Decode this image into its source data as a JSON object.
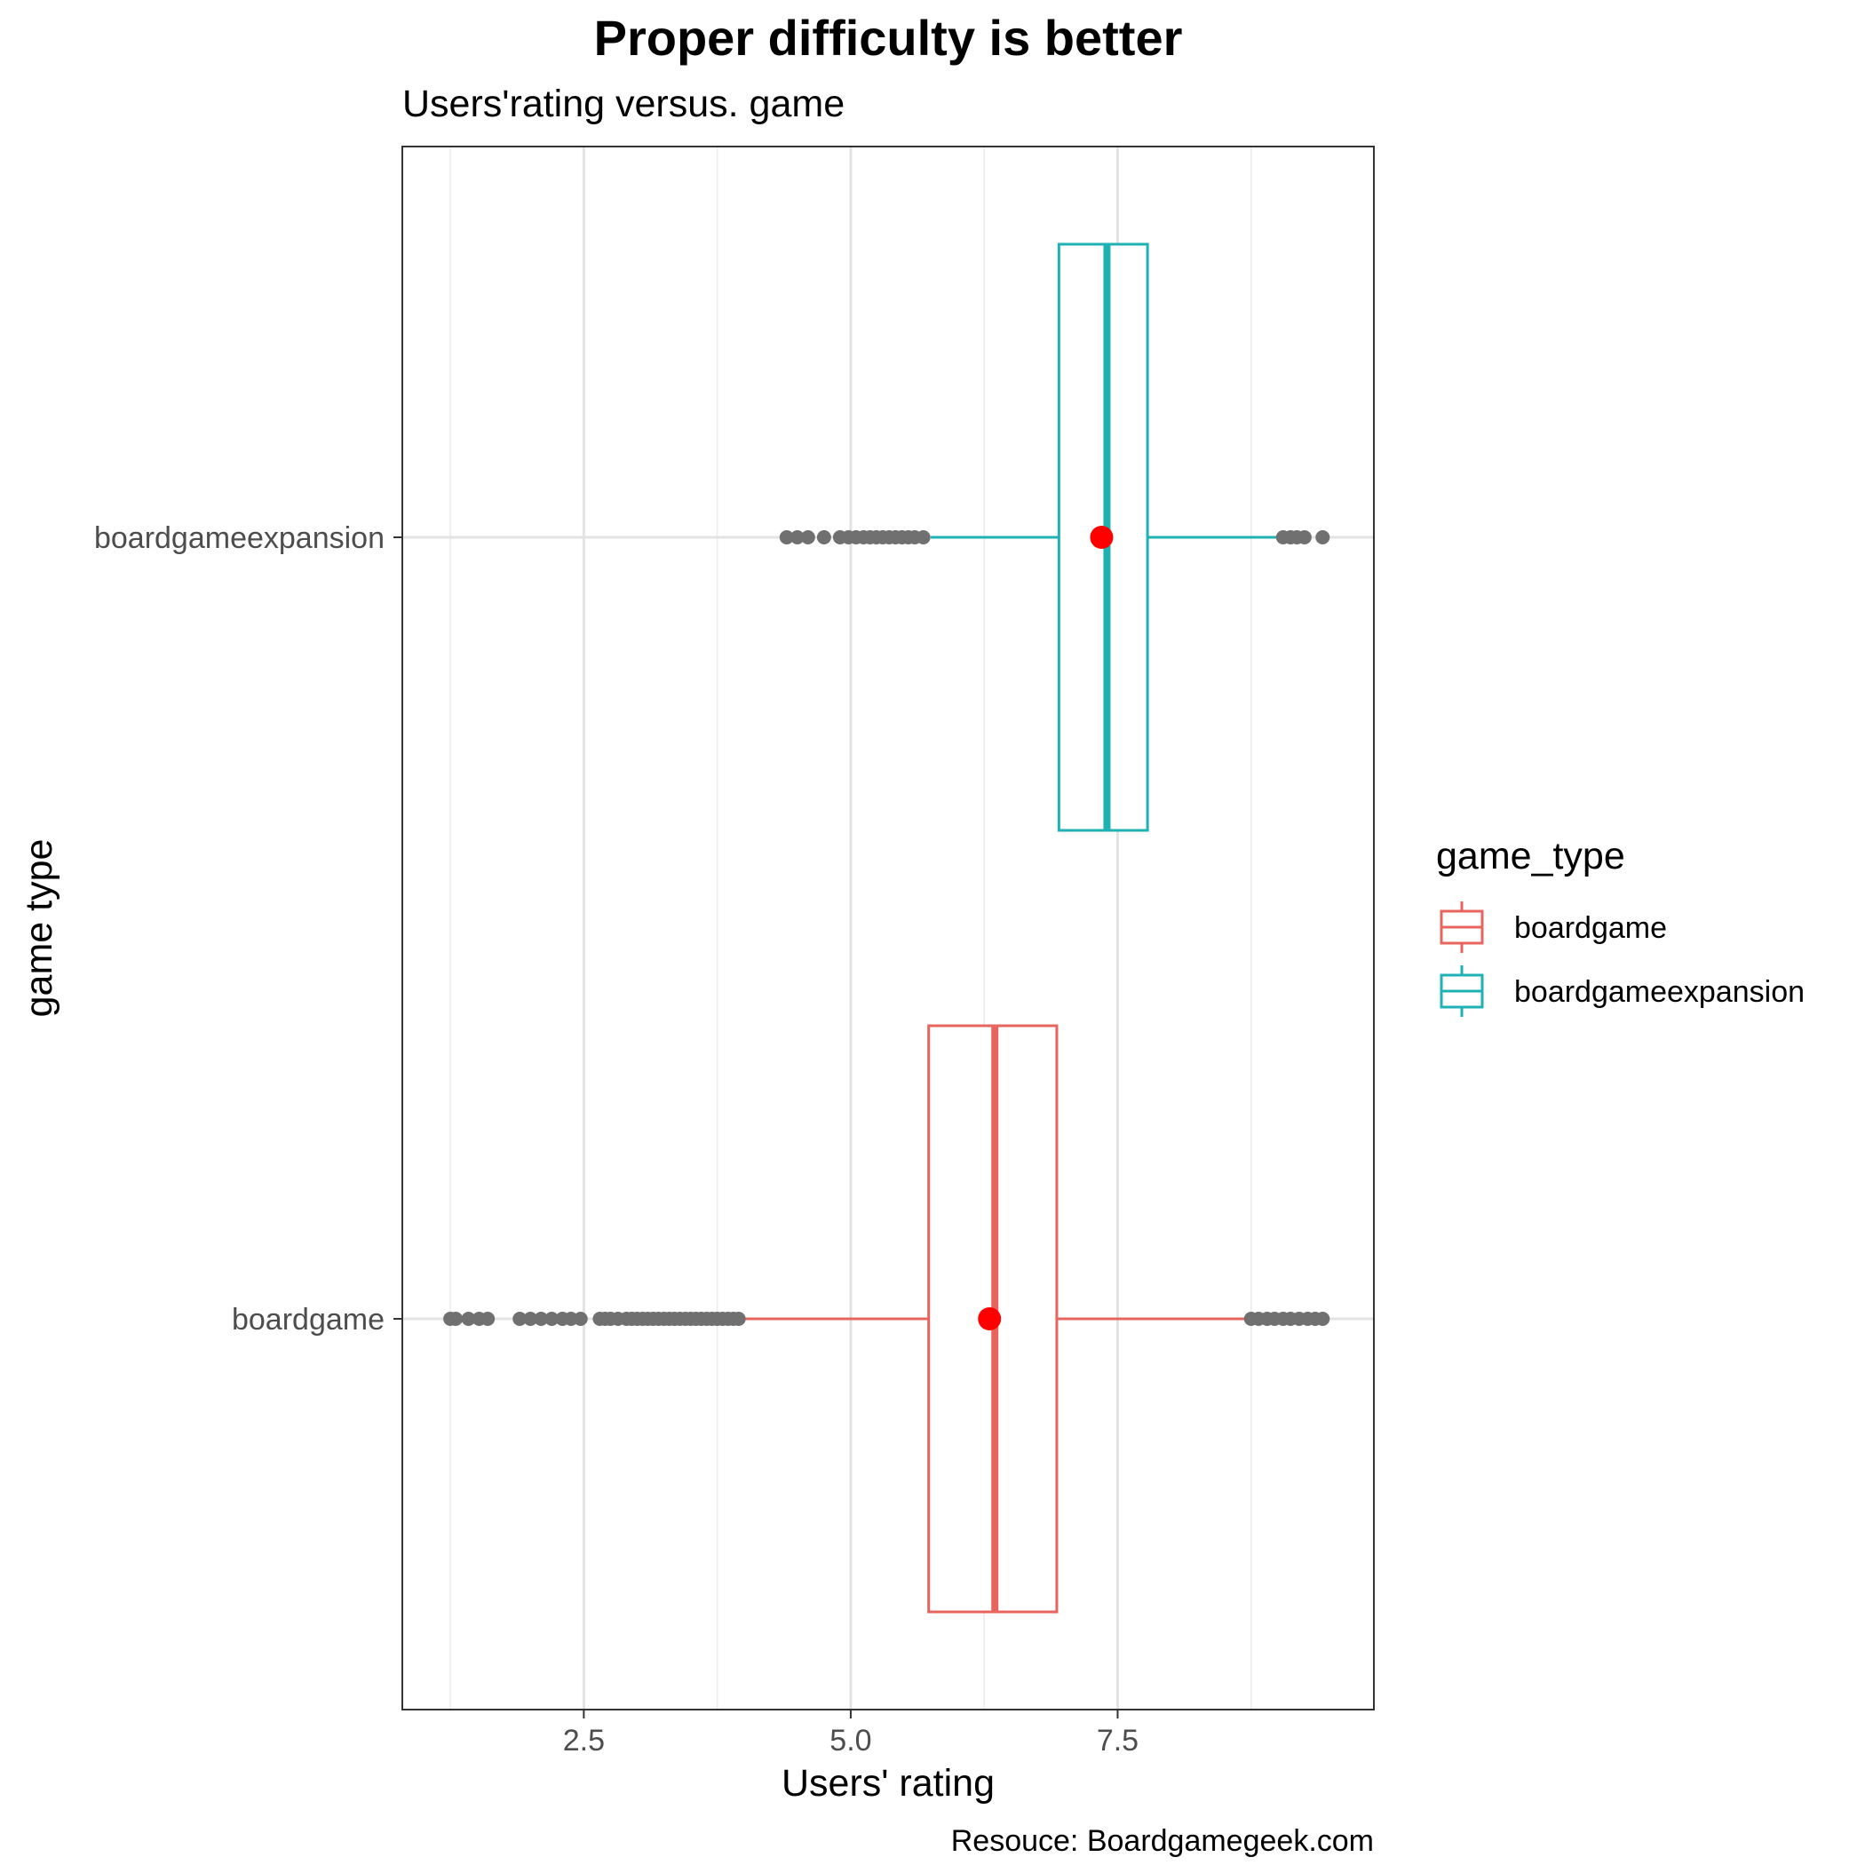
{
  "chart_data": {
    "type": "boxplot",
    "title": "Proper difficulty is better",
    "subtitle": "Users'rating versus. game",
    "xlabel": "Users' rating",
    "ylabel": "game type",
    "caption": "Resouce: Boardgamegeek.com",
    "orientation": "horizontal",
    "xlim": [
      0.8,
      9.9
    ],
    "x_ticks": [
      2.5,
      5.0,
      7.5
    ],
    "x_tick_labels": [
      "2.5",
      "5.0",
      "7.5"
    ],
    "categories": [
      "boardgameexpansion",
      "boardgame"
    ],
    "grid": true,
    "legend": {
      "title": "game_type",
      "position": "right",
      "entries": [
        "boardgame",
        "boardgameexpansion"
      ]
    },
    "mean_point_color": "#FF0000",
    "outlier_color": "#707070",
    "series": [
      {
        "name": "boardgameexpansion",
        "color": "#1FB1B4",
        "whisker_low": 5.75,
        "q1": 6.95,
        "median": 7.4,
        "q3": 7.78,
        "whisker_high": 9.0,
        "mean": 7.35,
        "outliers": [
          4.4,
          4.5,
          4.6,
          4.75,
          4.9,
          4.98,
          5.05,
          5.12,
          5.18,
          5.24,
          5.3,
          5.36,
          5.42,
          5.48,
          5.54,
          5.6,
          5.68,
          9.05,
          9.12,
          9.18,
          9.25,
          9.42
        ]
      },
      {
        "name": "boardgame",
        "color": "#E8645F",
        "whisker_low": 4.0,
        "q1": 5.73,
        "median": 6.35,
        "q3": 6.93,
        "whisker_high": 8.72,
        "mean": 6.3,
        "outliers": [
          1.25,
          1.3,
          1.42,
          1.52,
          1.6,
          1.9,
          2.0,
          2.1,
          2.2,
          2.3,
          2.38,
          2.47,
          2.65,
          2.7,
          2.75,
          2.82,
          2.9,
          2.95,
          3.0,
          3.05,
          3.1,
          3.15,
          3.2,
          3.25,
          3.3,
          3.35,
          3.4,
          3.45,
          3.5,
          3.55,
          3.6,
          3.65,
          3.7,
          3.75,
          3.8,
          3.85,
          3.9,
          3.95,
          8.75,
          8.82,
          8.9,
          8.97,
          9.05,
          9.12,
          9.2,
          9.28,
          9.35,
          9.42
        ]
      }
    ]
  }
}
